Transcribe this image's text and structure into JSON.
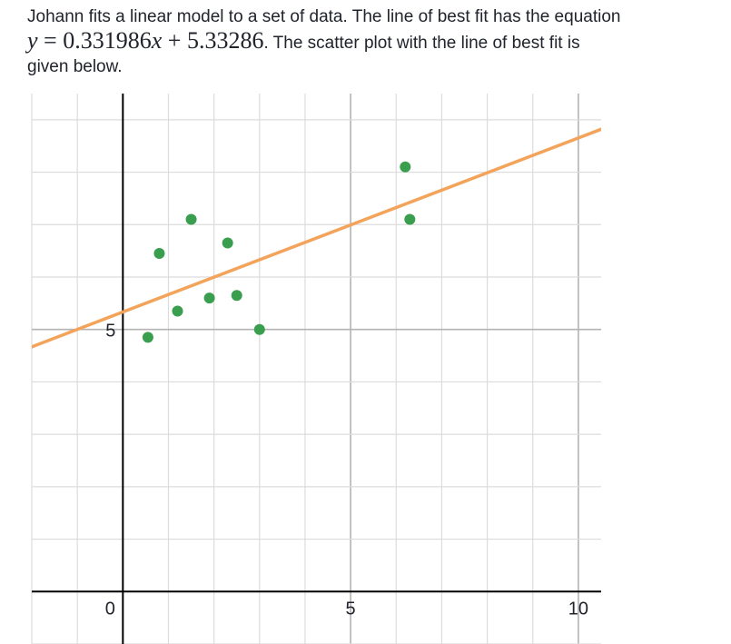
{
  "question": {
    "line1": "Johann fits a linear model to a set of data. The line of best fit has the equation",
    "eq_y": "y",
    "eq_equals": " = ",
    "eq_slope": "0.331986",
    "eq_x": "x",
    "eq_plus": " + ",
    "eq_intercept": "5.33286",
    "line2_tail": ". The scatter plot with the line of best fit is",
    "line3": "given below."
  },
  "chart_data": {
    "type": "scatter",
    "title": "",
    "xlabel": "",
    "ylabel": "",
    "xlim": [
      -2,
      10.5
    ],
    "ylim": [
      -1,
      9.5
    ],
    "grid": true,
    "x_tick_labels": [
      "0",
      "5",
      "10"
    ],
    "y_tick_labels": [
      "5"
    ],
    "points_color": "#3a9e4f",
    "fit_line": {
      "slope": 0.331986,
      "intercept": 5.33286,
      "color": "#f3a35a"
    },
    "series": [
      {
        "x": [
          0.55,
          0.8,
          1.2,
          1.5,
          1.9,
          2.3,
          2.5,
          3.0,
          6.2,
          6.3
        ],
        "y": [
          4.85,
          6.45,
          5.35,
          7.1,
          5.6,
          6.65,
          5.65,
          5.0,
          8.1,
          7.1
        ]
      }
    ]
  }
}
